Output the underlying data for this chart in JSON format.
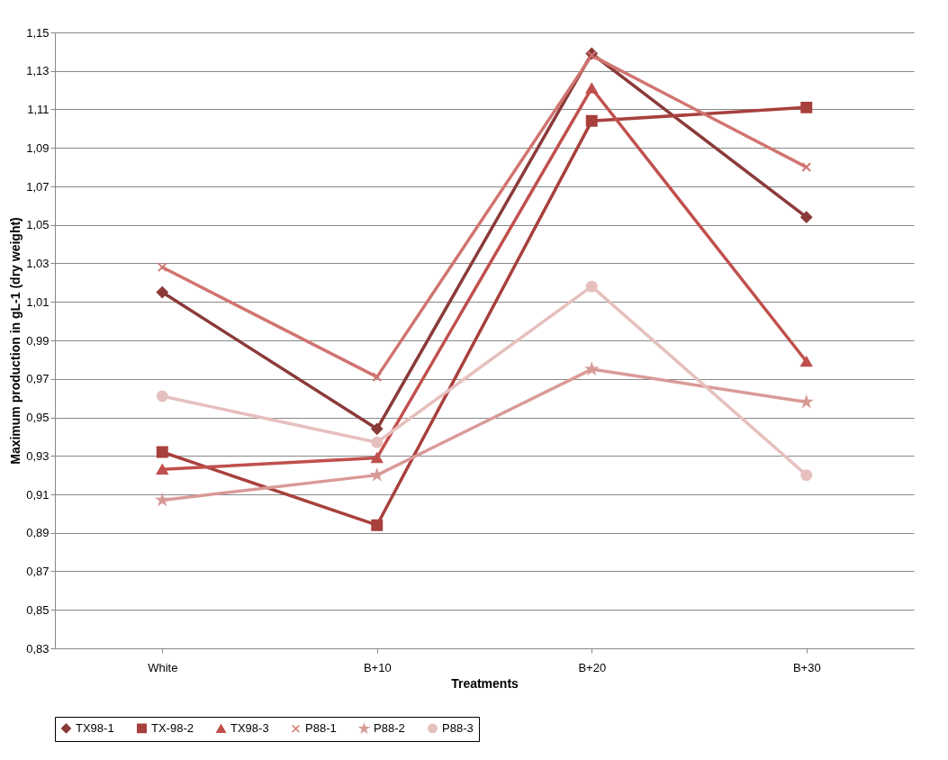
{
  "chart_data": {
    "type": "line",
    "xlabel": "Treatments",
    "ylabel": "Maximum production  in gL-1 (dry weight)",
    "categories": [
      "White",
      "B+10",
      "B+20",
      "B+30"
    ],
    "series": [
      {
        "name": "TX98-1",
        "color": "#8b3a3a",
        "marker": "diamond",
        "values": [
          1.015,
          0.944,
          1.139,
          1.054
        ]
      },
      {
        "name": "TX-98-2",
        "color": "#a8403c",
        "marker": "square",
        "values": [
          0.932,
          0.894,
          1.104,
          1.111
        ]
      },
      {
        "name": "TX98-3",
        "color": "#c0504d",
        "marker": "triangle",
        "values": [
          0.923,
          0.929,
          1.121,
          0.979
        ]
      },
      {
        "name": "P88-1",
        "color": "#d07470",
        "marker": "cross",
        "values": [
          1.028,
          0.971,
          1.138,
          1.08
        ]
      },
      {
        "name": "P88-2",
        "color": "#d99a97",
        "marker": "star",
        "values": [
          0.907,
          0.92,
          0.975,
          0.958
        ]
      },
      {
        "name": "P88-3",
        "color": "#e6c0be",
        "marker": "circle",
        "values": [
          0.961,
          0.937,
          1.018,
          0.92
        ]
      }
    ],
    "ylim": [
      0.83,
      1.15
    ],
    "yticks": [
      {
        "value": 0.83,
        "label": "0,83"
      },
      {
        "value": 0.85,
        "label": "0,85"
      },
      {
        "value": 0.87,
        "label": "0,87"
      },
      {
        "value": 0.89,
        "label": "0,89"
      },
      {
        "value": 0.91,
        "label": "0,91"
      },
      {
        "value": 0.93,
        "label": "0,93"
      },
      {
        "value": 0.95,
        "label": "0,95"
      },
      {
        "value": 0.97,
        "label": "0,97"
      },
      {
        "value": 0.99,
        "label": "0,99"
      },
      {
        "value": 1.01,
        "label": "1,01"
      },
      {
        "value": 1.03,
        "label": "1,03"
      },
      {
        "value": 1.05,
        "label": "1,05"
      },
      {
        "value": 1.07,
        "label": "1,07"
      },
      {
        "value": 1.09,
        "label": "1,09"
      },
      {
        "value": 1.11,
        "label": "1,11"
      },
      {
        "value": 1.13,
        "label": "1,13"
      },
      {
        "value": 1.15,
        "label": "1,15"
      }
    ],
    "grid": "y",
    "legend": "bottom",
    "line_style": "solid"
  }
}
